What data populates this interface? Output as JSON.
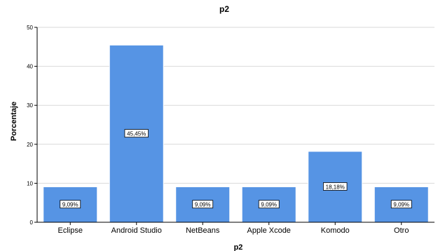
{
  "chart_data": {
    "type": "bar",
    "title": "p2",
    "xlabel": "p2",
    "ylabel": "Porcentaje",
    "categories": [
      "Eclipse",
      "Android Studio",
      "NetBeans",
      "Apple Xcode",
      "Komodo",
      "Otro"
    ],
    "values": [
      9.09,
      45.45,
      9.09,
      9.09,
      18.18,
      9.09
    ],
    "data_labels": [
      "9,09%",
      "45,45%",
      "9,09%",
      "9,09%",
      "18,18%",
      "9,09%"
    ],
    "ylim": [
      0,
      50
    ],
    "yticks": [
      0,
      10,
      20,
      30,
      40,
      50
    ],
    "grid": true,
    "bar_color": "#5694e4",
    "bar_edge_color": "#ffffff",
    "grid_color": "#d9d9d9"
  }
}
